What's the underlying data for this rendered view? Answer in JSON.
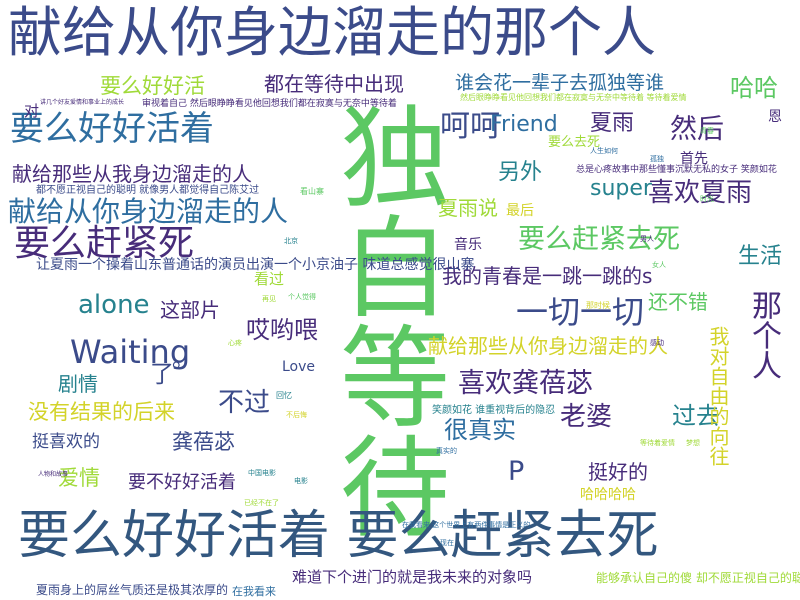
{
  "palette": {
    "navy": "#3b4b8a",
    "blue": "#2f6ea0",
    "teal": "#26828e",
    "green": "#5cc863",
    "lime": "#a0da39",
    "yellow": "#d3d32a",
    "purple": "#472c7a",
    "slate": "#33577f"
  },
  "words": [
    {
      "text": "献给从你身边溜走的那个人",
      "color": "#3b4b8a"
    },
    {
      "text": "独自等待",
      "color": "#5cc863"
    },
    {
      "text": "要么好好活着 要么赶紧去死",
      "color": "#33577f"
    },
    {
      "text": "要么好好活着",
      "color": "#2f6ea0"
    },
    {
      "text": "献给从你身边溜走的人",
      "color": "#2f6ea0"
    },
    {
      "text": "要么赶紧死",
      "color": "#472c7a"
    },
    {
      "text": "Waiting",
      "color": "#3b4b8a"
    },
    {
      "text": "要么好好活",
      "color": "#a0da39"
    },
    {
      "text": "都在等待中出现",
      "color": "#472c7a"
    },
    {
      "text": "谁会花一辈子去孤独等谁",
      "color": "#2f6ea0"
    },
    {
      "text": "哈哈",
      "color": "#5cc863"
    },
    {
      "text": "呵呵",
      "color": "#3b4b8a"
    },
    {
      "text": "Friend",
      "color": "#2f6ea0"
    },
    {
      "text": "夏雨",
      "color": "#472c7a"
    },
    {
      "text": "然后",
      "color": "#472c7a"
    },
    {
      "text": "献给那些从我身边溜走的人",
      "color": "#472c7a"
    },
    {
      "text": "另外",
      "color": "#26828e"
    },
    {
      "text": "super",
      "color": "#26828e"
    },
    {
      "text": "喜欢夏雨",
      "color": "#472c7a"
    },
    {
      "text": "夏雨说",
      "color": "#a0da39"
    },
    {
      "text": "要么赶紧去死",
      "color": "#5cc863"
    },
    {
      "text": "生活",
      "color": "#26828e"
    },
    {
      "text": "我的青春是一跳一跳的s",
      "color": "#472c7a"
    },
    {
      "text": "alone",
      "color": "#26828e"
    },
    {
      "text": "这部片",
      "color": "#472c7a"
    },
    {
      "text": "哎哟喂",
      "color": "#472c7a"
    },
    {
      "text": "一切一切",
      "color": "#3b4b8a"
    },
    {
      "text": "还不错",
      "color": "#5cc863"
    },
    {
      "text": "那个人",
      "color": "#472c7a"
    },
    {
      "text": "献给那些从你身边溜走的人",
      "color": "#d3d32a"
    },
    {
      "text": "喜欢龚蓓苾",
      "color": "#472c7a"
    },
    {
      "text": "老婆",
      "color": "#472c7a"
    },
    {
      "text": "过去",
      "color": "#26828e"
    },
    {
      "text": "没有结果的后来",
      "color": "#d3d32a"
    },
    {
      "text": "不过",
      "color": "#3b4b8a"
    },
    {
      "text": "剧情",
      "color": "#26828e"
    },
    {
      "text": "Love",
      "color": "#3b4b8a"
    },
    {
      "text": "挺喜欢的",
      "color": "#3b4b8a"
    },
    {
      "text": "龚蓓苾",
      "color": "#3b4b8a"
    },
    {
      "text": "很真实",
      "color": "#2f6ea0"
    },
    {
      "text": "爱情",
      "color": "#a0da39"
    },
    {
      "text": "要不好好活着",
      "color": "#472c7a"
    },
    {
      "text": "P",
      "color": "#3b4b8a"
    },
    {
      "text": "挺好的",
      "color": "#472c7a"
    },
    {
      "text": "哈哈哈哈",
      "color": "#d3d32a"
    },
    {
      "text": "我对自由的向往",
      "color": "#d3d32a"
    },
    {
      "text": "难道下个进门的就是我未来的对象吗",
      "color": "#472c7a"
    },
    {
      "text": "夏雨身上的屌丝气质还是极其浓厚的",
      "color": "#3b4b8a"
    },
    {
      "text": "能够承认自己的傻 却不愿正视自己的聪明",
      "color": "#a0da39"
    },
    {
      "text": "在我看来",
      "color": "#2f6ea0"
    },
    {
      "text": "音乐",
      "color": "#472c7a"
    },
    {
      "text": "看过",
      "color": "#a0da39"
    },
    {
      "text": "最后",
      "color": "#d3d32a"
    },
    {
      "text": "要么去死",
      "color": "#a0da39"
    },
    {
      "text": "首先",
      "color": "#472c7a"
    },
    {
      "text": "对",
      "color": "#472c7a"
    },
    {
      "text": "恩",
      "color": "#472c7a"
    },
    {
      "text": "了",
      "color": "#3b4b8a"
    },
    {
      "text": "。",
      "color": "#3b4b8a"
    },
    {
      "text": "让夏雨一个操着山东普通话的演员出演一个小京油子 味道总感觉很山寨",
      "color": "#3b4b8a"
    },
    {
      "text": "都不愿正视自己的聪明 就像男人都觉得自己陈艾过",
      "color": "#3b4b8a"
    },
    {
      "text": "总是心疼故事中那些懂事沉默无私的女子 笑颜如花",
      "color": "#472c7a"
    },
    {
      "text": "笑颜如花 谁重视背后的隐忍",
      "color": "#26828e"
    },
    {
      "text": "审视着自己 然后眼睁睁看见他回想我们都在寂寞与无奈中等待着",
      "color": "#472c7a"
    },
    {
      "text": "然后眼睁睁看见他回想我们都在寂寞与无奈中等待着 等待着爱情",
      "color": "#a0da39"
    },
    {
      "text": "人生如何",
      "color": "#2f6ea0"
    },
    {
      "text": "等待着爱情",
      "color": "#a0da39"
    },
    {
      "text": "梦想",
      "color": "#a0da39"
    },
    {
      "text": "看山寨",
      "color": "#5cc863"
    },
    {
      "text": "在我看来 这个世界上有两件事情是正义的",
      "color": "#2f6ea0"
    },
    {
      "text": "讲几个好友爱情和事业上的成长",
      "color": "#472c7a"
    },
    {
      "text": "中国电影",
      "color": "#26828e"
    },
    {
      "text": "个人觉得",
      "color": "#5cc863"
    },
    {
      "text": "那时候",
      "color": "#d3d32a"
    },
    {
      "text": "已经不在了",
      "color": "#a0da39"
    },
    {
      "text": "回忆",
      "color": "#26828e"
    },
    {
      "text": "青春",
      "color": "#5cc863"
    },
    {
      "text": "孤独",
      "color": "#2f6ea0"
    },
    {
      "text": "人物和故事",
      "color": "#472c7a"
    },
    {
      "text": "心疼",
      "color": "#a0da39"
    },
    {
      "text": "不后悔",
      "color": "#d3d32a"
    },
    {
      "text": "北京",
      "color": "#26828e"
    },
    {
      "text": "男人",
      "color": "#472c7a"
    },
    {
      "text": "女人",
      "color": "#5cc863"
    },
    {
      "text": "真实的",
      "color": "#2f6ea0"
    },
    {
      "text": "再见",
      "color": "#a0da39"
    },
    {
      "text": "电影",
      "color": "#26828e"
    },
    {
      "text": "感动",
      "color": "#472c7a"
    },
    {
      "text": "时光",
      "color": "#5cc863"
    },
    {
      "text": "现在",
      "color": "#2f6ea0"
    }
  ]
}
